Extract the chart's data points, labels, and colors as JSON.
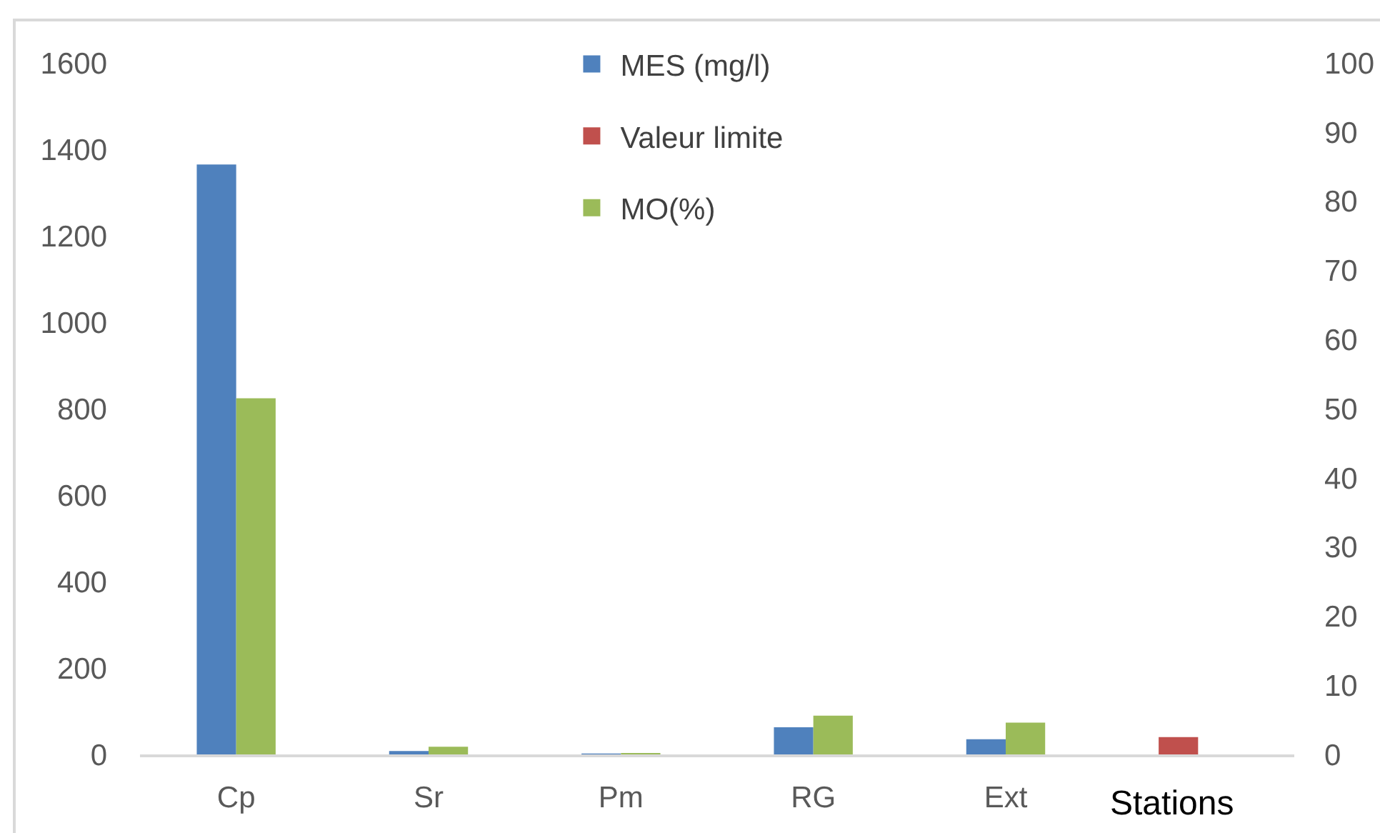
{
  "chart_data": {
    "type": "bar",
    "categories": [
      "Cp",
      "Sr",
      "Pm",
      "RG",
      "Ext",
      null
    ],
    "xlabel": "Stations",
    "series": [
      {
        "name": "MES (mg/l)",
        "color": "#4f81bd",
        "values": [
          1365,
          8,
          2,
          63,
          35,
          null
        ]
      },
      {
        "name": "Valeur limite",
        "color": "#c0504d",
        "values": [
          null,
          null,
          null,
          null,
          null,
          40
        ]
      },
      {
        "name": "MO(%)",
        "color": "#9bbb59",
        "axis": "y2",
        "values": [
          51.5,
          1.1,
          0.2,
          5.6,
          4.6,
          null
        ]
      }
    ],
    "ylim": [
      0,
      1600
    ],
    "yticks": [
      0,
      200,
      400,
      600,
      800,
      1000,
      1200,
      1400,
      1600
    ],
    "y2lim": [
      0,
      100
    ],
    "y2ticks": [
      0,
      10,
      20,
      30,
      40,
      50,
      60,
      70,
      80,
      90,
      100
    ],
    "grid": false,
    "legend": "top"
  }
}
